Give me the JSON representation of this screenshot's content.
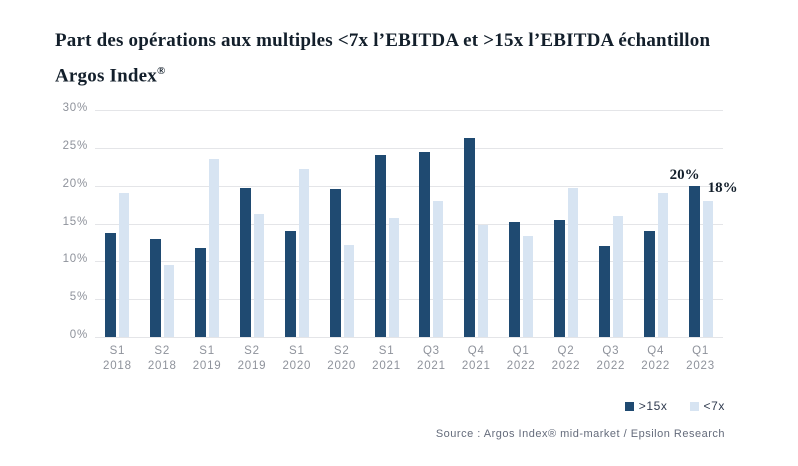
{
  "title": {
    "line1": "Part des opérations aux multiples <7x l’EBITDA et >15x l’EBITDA échantillon",
    "line2": "Argos Index",
    "registered": "®"
  },
  "legend": {
    "items": [
      {
        "label": ">15x",
        "color": "#1F4A71"
      },
      {
        "label": "<7x",
        "color": "#D7E4F2"
      }
    ]
  },
  "source": "Source : Argos Index® mid-market / Epsilon Research",
  "colors": {
    "dark_series": "#1F4A71",
    "light_series": "#D7E4F2",
    "grid": "#E4E5E8",
    "axis_text": "#8E929B",
    "title_text": "#131F2B",
    "legend_text": "#2F3A4E",
    "source_text": "#646B7B"
  },
  "chart_data": {
    "type": "bar",
    "title": "Part des opérations aux multiples <7x l’EBITDA et >15x l’EBITDA échantillon Argos Index®",
    "categories": [
      "S1 2018",
      "S2 2018",
      "S1 2019",
      "S2 2019",
      "S1 2020",
      "S2 2020",
      "S1 2021",
      "Q3 2021",
      "Q4 2021",
      "Q1 2022",
      "Q2 2022",
      "Q3 2022",
      "Q4 2022",
      "Q1 2023"
    ],
    "series": [
      {
        "name": ">15x",
        "color": "#1F4A71",
        "values": [
          13.8,
          13.0,
          11.8,
          19.7,
          14.0,
          19.5,
          24.0,
          24.5,
          26.3,
          15.2,
          15.4,
          12.0,
          14.0,
          20.0
        ]
      },
      {
        "name": "<7x",
        "color": "#D7E4F2",
        "values": [
          19.0,
          9.5,
          23.5,
          16.3,
          22.2,
          12.2,
          15.7,
          18.0,
          14.8,
          13.4,
          19.7,
          16.0,
          19.0,
          18.0
        ]
      }
    ],
    "annotations": [
      {
        "category": "Q1 2023",
        "series": ">15x",
        "text": "20%"
      },
      {
        "category": "Q1 2023",
        "series": "<7x",
        "text": "18%"
      }
    ],
    "xlabel": "",
    "ylabel": "",
    "ylim": [
      0,
      30
    ],
    "ytick_step": 5,
    "ytick_suffix": "%",
    "grid": true,
    "legend_position": "bottom-right"
  }
}
